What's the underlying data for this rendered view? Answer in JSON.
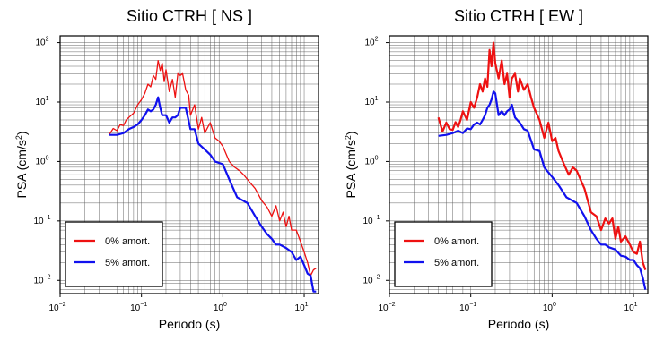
{
  "chart_data": [
    {
      "type": "line",
      "title": "Sitio CTRH [ NS ]",
      "xlabel": "Periodo (s)",
      "ylabel_main": "PSA (cm/s",
      "ylabel_sup": "2",
      "ylabel_tail": ")",
      "x_scale": "log",
      "y_scale": "log",
      "xlim": [
        0.01,
        15
      ],
      "ylim": [
        0.006,
        130
      ],
      "grid": true,
      "legend_position": "bottom-left",
      "x_ticks": [
        {
          "base": "10",
          "exp": "−2"
        },
        {
          "base": "10",
          "exp": "−1"
        },
        {
          "base": "10",
          "exp": "0"
        },
        {
          "base": "10",
          "exp": "1"
        }
      ],
      "y_ticks": [
        {
          "base": "10",
          "exp": "−2"
        },
        {
          "base": "10",
          "exp": "−1"
        },
        {
          "base": "10",
          "exp": "0"
        },
        {
          "base": "10",
          "exp": "1"
        },
        {
          "base": "10",
          "exp": "2"
        }
      ],
      "series": [
        {
          "name": "0% amort.",
          "color": "#ee1111",
          "x": [
            0.04,
            0.045,
            0.05,
            0.055,
            0.06,
            0.065,
            0.07,
            0.08,
            0.09,
            0.1,
            0.11,
            0.12,
            0.13,
            0.14,
            0.15,
            0.16,
            0.17,
            0.18,
            0.19,
            0.2,
            0.22,
            0.24,
            0.26,
            0.28,
            0.3,
            0.32,
            0.35,
            0.38,
            0.4,
            0.45,
            0.5,
            0.55,
            0.6,
            0.7,
            0.8,
            0.9,
            1.0,
            1.2,
            1.4,
            1.6,
            1.8,
            2.0,
            2.5,
            3.0,
            3.5,
            4.0,
            4.5,
            5.0,
            5.5,
            6.0,
            6.5,
            7.0,
            8.0,
            9.0,
            10.0,
            11.0,
            12.0,
            13.0,
            14.0
          ],
          "y": [
            2.8,
            3.6,
            3.3,
            4.2,
            4.0,
            5.0,
            5.5,
            6.5,
            9.0,
            11.0,
            14.0,
            20.0,
            18.0,
            28.0,
            24.0,
            50.0,
            34.0,
            45.0,
            22.0,
            35.0,
            15.0,
            24.0,
            12.0,
            30.0,
            28.0,
            30.0,
            16.0,
            13.0,
            6.0,
            9.0,
            3.5,
            5.5,
            3.0,
            4.5,
            2.5,
            2.2,
            1.8,
            1.0,
            0.8,
            0.7,
            0.6,
            0.5,
            0.35,
            0.22,
            0.17,
            0.12,
            0.18,
            0.1,
            0.14,
            0.08,
            0.12,
            0.07,
            0.07,
            0.045,
            0.03,
            0.02,
            0.012,
            0.015,
            0.016
          ]
        },
        {
          "name": "5% amort.",
          "color": "#1111ee",
          "x": [
            0.04,
            0.05,
            0.06,
            0.07,
            0.08,
            0.09,
            0.1,
            0.11,
            0.12,
            0.13,
            0.14,
            0.15,
            0.16,
            0.17,
            0.18,
            0.2,
            0.22,
            0.24,
            0.26,
            0.28,
            0.3,
            0.35,
            0.4,
            0.45,
            0.5,
            0.6,
            0.7,
            0.8,
            1.0,
            1.2,
            1.5,
            2.0,
            2.5,
            3.0,
            3.5,
            4.0,
            4.5,
            5.0,
            6.0,
            7.0,
            8.0,
            9.0,
            10.0,
            11.0,
            12.0,
            13.0,
            14.0
          ],
          "y": [
            2.8,
            2.8,
            3.0,
            3.5,
            3.8,
            4.2,
            5.0,
            6.0,
            7.5,
            7.0,
            7.5,
            9.0,
            12.0,
            8.0,
            6.0,
            6.0,
            4.5,
            5.5,
            5.5,
            6.0,
            8.0,
            8.0,
            3.5,
            3.5,
            2.0,
            1.6,
            1.3,
            1.0,
            0.9,
            0.5,
            0.25,
            0.2,
            0.12,
            0.08,
            0.06,
            0.05,
            0.04,
            0.04,
            0.035,
            0.03,
            0.022,
            0.025,
            0.018,
            0.013,
            0.012,
            0.0065,
            0.0065
          ]
        }
      ]
    },
    {
      "type": "line",
      "title": "Sitio CTRH [ EW ]",
      "xlabel": "Periodo (s)",
      "ylabel_main": "PSA (cm/s",
      "ylabel_sup": "2",
      "ylabel_tail": ")",
      "x_scale": "log",
      "y_scale": "log",
      "xlim": [
        0.01,
        15
      ],
      "ylim": [
        0.006,
        130
      ],
      "grid": true,
      "legend_position": "bottom-left",
      "x_ticks": [
        {
          "base": "10",
          "exp": "−2"
        },
        {
          "base": "10",
          "exp": "−1"
        },
        {
          "base": "10",
          "exp": "0"
        },
        {
          "base": "10",
          "exp": "1"
        }
      ],
      "y_ticks": [
        {
          "base": "10",
          "exp": "−2"
        },
        {
          "base": "10",
          "exp": "−1"
        },
        {
          "base": "10",
          "exp": "0"
        },
        {
          "base": "10",
          "exp": "1"
        },
        {
          "base": "10",
          "exp": "2"
        }
      ],
      "series": [
        {
          "name": "0% amort.",
          "color": "#ee1111",
          "x": [
            0.04,
            0.045,
            0.05,
            0.055,
            0.06,
            0.065,
            0.07,
            0.075,
            0.08,
            0.09,
            0.1,
            0.11,
            0.12,
            0.13,
            0.14,
            0.15,
            0.16,
            0.17,
            0.18,
            0.19,
            0.2,
            0.22,
            0.24,
            0.26,
            0.28,
            0.3,
            0.32,
            0.35,
            0.38,
            0.4,
            0.45,
            0.5,
            0.55,
            0.6,
            0.7,
            0.8,
            0.9,
            1.0,
            1.1,
            1.2,
            1.4,
            1.6,
            1.8,
            2.0,
            2.5,
            3.0,
            3.5,
            4.0,
            4.5,
            5.0,
            5.5,
            6.0,
            6.5,
            7.0,
            8.0,
            9.0,
            10.0,
            11.0,
            12.0,
            13.0,
            14.0
          ],
          "y": [
            5.5,
            3.2,
            4.5,
            3.5,
            3.4,
            4.6,
            3.8,
            5.0,
            7.0,
            5.0,
            10.0,
            8.0,
            12.0,
            20.0,
            15.0,
            25.0,
            18.0,
            75.0,
            40.0,
            100.0,
            45.0,
            25.0,
            50.0,
            20.0,
            30.0,
            12.0,
            25.0,
            30.0,
            15.0,
            25.0,
            16.0,
            20.0,
            12.0,
            8.0,
            5.0,
            2.5,
            4.5,
            2.2,
            2.5,
            1.5,
            0.9,
            0.6,
            0.8,
            0.7,
            0.35,
            0.14,
            0.12,
            0.07,
            0.11,
            0.09,
            0.11,
            0.05,
            0.08,
            0.045,
            0.055,
            0.04,
            0.03,
            0.028,
            0.045,
            0.02,
            0.015
          ]
        },
        {
          "name": "5% amort.",
          "color": "#1111ee",
          "x": [
            0.04,
            0.05,
            0.06,
            0.07,
            0.08,
            0.09,
            0.1,
            0.11,
            0.12,
            0.13,
            0.14,
            0.15,
            0.16,
            0.17,
            0.18,
            0.19,
            0.2,
            0.22,
            0.24,
            0.26,
            0.28,
            0.3,
            0.32,
            0.35,
            0.4,
            0.45,
            0.5,
            0.6,
            0.7,
            0.8,
            1.0,
            1.2,
            1.5,
            2.0,
            2.5,
            3.0,
            3.5,
            4.0,
            4.5,
            5.0,
            6.0,
            7.0,
            8.0,
            9.0,
            10.0,
            11.0,
            12.0,
            13.0,
            14.0
          ],
          "y": [
            2.7,
            2.8,
            3.0,
            3.3,
            3.0,
            3.6,
            3.5,
            4.2,
            4.5,
            4.2,
            5.0,
            6.0,
            8.0,
            9.0,
            11.0,
            15.0,
            14.0,
            6.0,
            7.0,
            6.0,
            7.0,
            7.5,
            9.0,
            5.5,
            4.5,
            3.5,
            3.3,
            1.6,
            1.5,
            0.8,
            0.55,
            0.4,
            0.25,
            0.2,
            0.12,
            0.07,
            0.05,
            0.04,
            0.04,
            0.036,
            0.033,
            0.026,
            0.025,
            0.022,
            0.022,
            0.018,
            0.016,
            0.011,
            0.007
          ]
        }
      ]
    }
  ]
}
